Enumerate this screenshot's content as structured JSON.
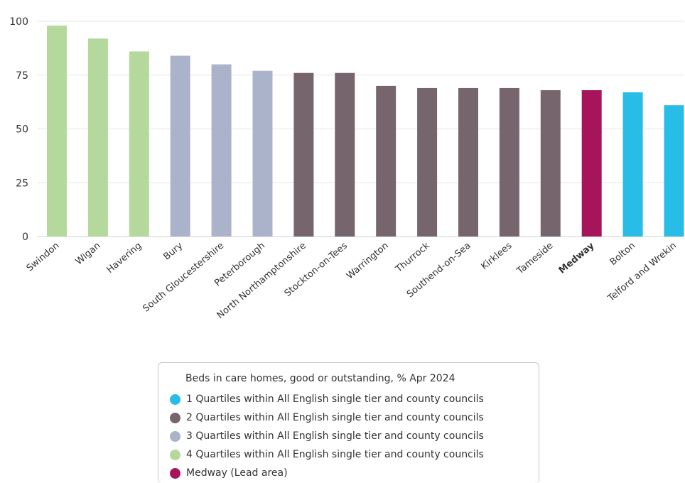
{
  "chart_data": {
    "type": "bar",
    "title": "",
    "xlabel": "",
    "ylabel": "",
    "ylim": [
      0,
      100
    ],
    "yticks": [
      0,
      25,
      50,
      75,
      100
    ],
    "grid": true,
    "legend_position": "bottom",
    "categories": [
      "Swindon",
      "Wigan",
      "Havering",
      "Bury",
      "South Gloucestershire",
      "Peterborough",
      "North Northamptonshire",
      "Stockton-on-Tees",
      "Warrington",
      "Thurrock",
      "Southend-on-Sea",
      "Kirklees",
      "Tameside",
      "Medway",
      "Bolton",
      "Telford and Wrekin"
    ],
    "values": [
      98,
      92,
      86,
      84,
      80,
      77,
      76,
      76,
      70,
      69,
      69,
      69,
      68,
      68,
      67,
      61
    ],
    "groups": [
      "q4",
      "q4",
      "q4",
      "q3",
      "q3",
      "q3",
      "q2",
      "q2",
      "q2",
      "q2",
      "q2",
      "q2",
      "q2",
      "lead",
      "q1",
      "q1"
    ],
    "highlight_category": "Medway",
    "colors": {
      "q1": "#27bde6",
      "q2": "#76656d",
      "q3": "#aab3c9",
      "q4": "#b5d99c",
      "lead": "#a6155a"
    },
    "legend": {
      "title": "Beds in care homes, good or outstanding, % Apr 2024",
      "items": [
        {
          "key": "q1",
          "label": "1 Quartiles within All English single tier and county councils"
        },
        {
          "key": "q2",
          "label": "2 Quartiles within All English single tier and county councils"
        },
        {
          "key": "q3",
          "label": "3 Quartiles within All English single tier and county councils"
        },
        {
          "key": "q4",
          "label": "4 Quartiles within All English single tier and county councils"
        },
        {
          "key": "lead",
          "label": "Medway (Lead area)"
        }
      ]
    }
  }
}
